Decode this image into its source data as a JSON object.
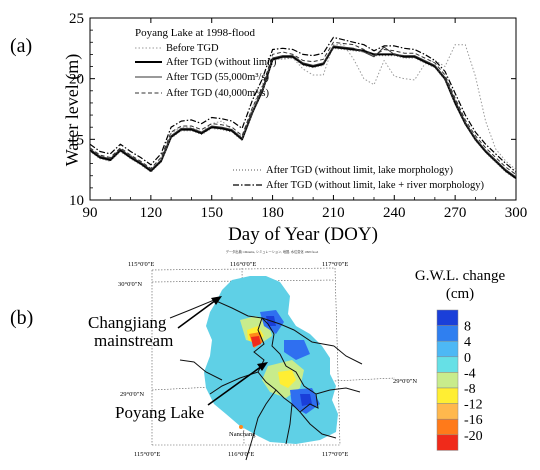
{
  "panel_a": {
    "label": "(a)",
    "chart_data": {
      "type": "line",
      "title": "Poyang Lake at 1998-flood",
      "xlabel": "Day of Year (DOY)",
      "ylabel": "Water level (m)",
      "xlim": [
        90,
        300
      ],
      "ylim": [
        10,
        25
      ],
      "xticks": [
        90,
        120,
        150,
        180,
        210,
        240,
        270,
        300
      ],
      "yticks": [
        10,
        15,
        20,
        25
      ],
      "grid": false,
      "legend_upper": [
        "Before TGD",
        "After TGD (without limit)",
        "After TGD (55,000m³/s)",
        "After TGD (40,000m³/s)"
      ],
      "legend_lower": [
        "After TGD (without limit, lake morphology)",
        "After TGD (without limit, lake + river morphology)"
      ],
      "series": [
        {
          "name": "Before TGD",
          "style": "dotted",
          "color": "#999999",
          "x": [
            90,
            95,
            100,
            105,
            110,
            115,
            120,
            125,
            130,
            135,
            140,
            145,
            150,
            155,
            160,
            165,
            170,
            175,
            180,
            185,
            190,
            195,
            200,
            205,
            210,
            215,
            220,
            225,
            230,
            235,
            240,
            245,
            250,
            255,
            260,
            265,
            270,
            275,
            280,
            285,
            290,
            295,
            300
          ],
          "y": [
            14.2,
            13.6,
            13.3,
            14.1,
            13.7,
            13.0,
            12.5,
            13.3,
            15.5,
            16.0,
            16.0,
            15.6,
            16.3,
            16.5,
            15.8,
            15.2,
            17.6,
            19.5,
            21.6,
            21.6,
            21.7,
            20.8,
            20.3,
            20.3,
            22.8,
            22.8,
            21.6,
            20.0,
            19.5,
            21.5,
            20.2,
            20.0,
            19.9,
            21.2,
            21.5,
            21.0,
            22.8,
            22.8,
            20.2,
            16.5,
            14.2,
            13.2,
            12.5
          ]
        },
        {
          "name": "After TGD (without limit)",
          "style": "solid-thick",
          "color": "#000000",
          "x": [
            90,
            95,
            100,
            105,
            110,
            115,
            120,
            125,
            130,
            135,
            140,
            145,
            150,
            155,
            160,
            165,
            170,
            175,
            180,
            185,
            190,
            195,
            200,
            205,
            210,
            215,
            220,
            225,
            230,
            235,
            240,
            245,
            250,
            255,
            260,
            265,
            270,
            275,
            280,
            285,
            290,
            295,
            300
          ],
          "y": [
            14.1,
            13.5,
            13.3,
            14.1,
            13.5,
            13.0,
            12.4,
            13.2,
            15.2,
            15.8,
            15.8,
            15.5,
            16.0,
            15.9,
            15.7,
            15.0,
            17.2,
            19.0,
            21.6,
            21.8,
            21.8,
            21.2,
            21.0,
            21.2,
            22.6,
            22.5,
            22.4,
            22.3,
            22.0,
            22.0,
            22.0,
            21.8,
            21.8,
            21.4,
            21.0,
            20.0,
            18.0,
            16.3,
            15.0,
            14.0,
            13.2,
            12.4,
            11.8
          ]
        },
        {
          "name": "After TGD (55,000m³/s)",
          "style": "solid-thin",
          "color": "#333333",
          "x": [
            90,
            95,
            100,
            105,
            110,
            115,
            120,
            125,
            130,
            135,
            140,
            145,
            150,
            155,
            160,
            165,
            170,
            175,
            180,
            185,
            190,
            195,
            200,
            205,
            210,
            215,
            220,
            225,
            230,
            235,
            240,
            245,
            250,
            255,
            260,
            265,
            270,
            275,
            280,
            285,
            290,
            295,
            300
          ],
          "y": [
            14.2,
            13.6,
            13.4,
            14.2,
            13.6,
            13.1,
            12.5,
            13.3,
            15.3,
            15.9,
            15.9,
            15.6,
            16.1,
            16.0,
            15.8,
            15.1,
            17.3,
            19.1,
            21.7,
            21.9,
            21.9,
            21.3,
            21.1,
            21.3,
            22.7,
            22.6,
            22.5,
            22.2,
            21.8,
            22.6,
            22.0,
            21.9,
            21.9,
            21.5,
            21.1,
            20.1,
            18.2,
            16.4,
            15.1,
            14.1,
            13.3,
            12.5,
            11.9
          ]
        },
        {
          "name": "After TGD (40,000m³/s)",
          "style": "dashed",
          "color": "#333333",
          "x": [
            90,
            95,
            100,
            105,
            110,
            115,
            120,
            125,
            130,
            135,
            140,
            145,
            150,
            155,
            160,
            165,
            170,
            175,
            180,
            185,
            190,
            195,
            200,
            205,
            210,
            215,
            220,
            225,
            230,
            235,
            240,
            245,
            250,
            255,
            260,
            265,
            270,
            275,
            280,
            285,
            290,
            295,
            300
          ],
          "y": [
            14.3,
            13.7,
            13.5,
            14.3,
            13.7,
            13.2,
            12.6,
            13.5,
            15.6,
            16.1,
            16.1,
            15.8,
            16.3,
            16.2,
            16.0,
            15.3,
            17.6,
            19.3,
            22.0,
            22.2,
            22.0,
            21.5,
            21.4,
            21.6,
            23.0,
            22.9,
            22.8,
            22.4,
            21.9,
            22.4,
            22.3,
            22.1,
            22.1,
            21.7,
            21.3,
            20.3,
            18.4,
            16.6,
            15.3,
            14.3,
            13.5,
            12.7,
            12.1
          ]
        },
        {
          "name": "After TGD (without limit, lake morphology)",
          "style": "dotted-fine",
          "color": "#555555",
          "x": [
            90,
            95,
            100,
            105,
            110,
            115,
            120,
            125,
            130,
            135,
            140,
            145,
            150,
            155,
            160,
            165,
            170,
            175,
            180,
            185,
            190,
            195,
            200,
            205,
            210,
            215,
            220,
            225,
            230,
            235,
            240,
            245,
            250,
            255,
            260,
            265,
            270,
            275,
            280,
            285,
            290,
            295,
            300
          ],
          "y": [
            14.0,
            13.4,
            13.2,
            14.0,
            13.4,
            12.9,
            12.3,
            13.1,
            15.1,
            15.7,
            15.7,
            15.4,
            15.9,
            15.8,
            15.6,
            14.9,
            17.1,
            18.9,
            21.5,
            21.7,
            21.7,
            21.1,
            20.9,
            21.1,
            22.5,
            22.4,
            22.3,
            22.2,
            21.9,
            21.9,
            21.9,
            21.7,
            21.7,
            21.3,
            20.9,
            19.9,
            17.9,
            16.2,
            14.9,
            13.9,
            13.1,
            12.3,
            11.7
          ]
        },
        {
          "name": "After TGD (without limit, lake + river morphology)",
          "style": "dash-dot",
          "color": "#000000",
          "x": [
            90,
            95,
            100,
            105,
            110,
            115,
            120,
            125,
            130,
            135,
            140,
            145,
            150,
            155,
            160,
            165,
            170,
            175,
            180,
            185,
            190,
            195,
            200,
            205,
            210,
            215,
            220,
            225,
            230,
            235,
            240,
            245,
            250,
            255,
            260,
            265,
            270,
            275,
            280,
            285,
            290,
            295,
            300
          ],
          "y": [
            14.6,
            14.0,
            13.8,
            14.6,
            14.0,
            13.5,
            12.9,
            13.8,
            16.0,
            16.5,
            16.6,
            16.3,
            16.8,
            16.7,
            16.5,
            15.9,
            18.2,
            20.0,
            22.4,
            22.5,
            22.4,
            22.0,
            21.9,
            22.1,
            23.4,
            23.2,
            23.0,
            22.8,
            22.3,
            22.7,
            22.7,
            22.5,
            22.4,
            22.0,
            21.5,
            20.6,
            18.8,
            17.0,
            15.6,
            14.6,
            13.8,
            13.0,
            12.3
          ]
        }
      ]
    }
  },
  "panel_b": {
    "label": "(b)",
    "map_header": "データ出典: Ohnuma, シミュレーション, 地図, 水位変化 1998 flood",
    "graticule": {
      "top": [
        "115°0'0\"E",
        "116°0'0\"E",
        "117°0'0\"E"
      ],
      "bottom": [
        "115°0'0\"E",
        "116°0'0\"E",
        "117°0'0\"E"
      ],
      "left_lat": "30°0'0\"N",
      "left_lat2": "29°0'0\"N",
      "right_lat": "29°0'0\"N"
    },
    "annotations": {
      "changjiang_1": "Changjiang",
      "changjiang_2": "mainstream",
      "poyang": "Poyang Lake",
      "city": "Nanchang"
    },
    "legend": {
      "title_1": "G.W.L. change",
      "title_2": "(cm)",
      "ticks": [
        "8",
        "4",
        "0",
        "-4",
        "-8",
        "-12",
        "-16",
        "-20"
      ],
      "colors": [
        "#1a3fd9",
        "#2f7ff0",
        "#4db8f5",
        "#66e0e6",
        "#c8ec8c",
        "#ffee33",
        "#ffb84d",
        "#ff7a1a",
        "#f02a1a"
      ]
    },
    "field_colors": {
      "base": "#5fd0e6",
      "positive": "#2f6ff0",
      "strong_positive": "#1a3fd9",
      "negative": "#c8ec8c",
      "yellow": "#ffee33",
      "orange": "#ff8a1a",
      "red": "#f02a1a"
    }
  }
}
